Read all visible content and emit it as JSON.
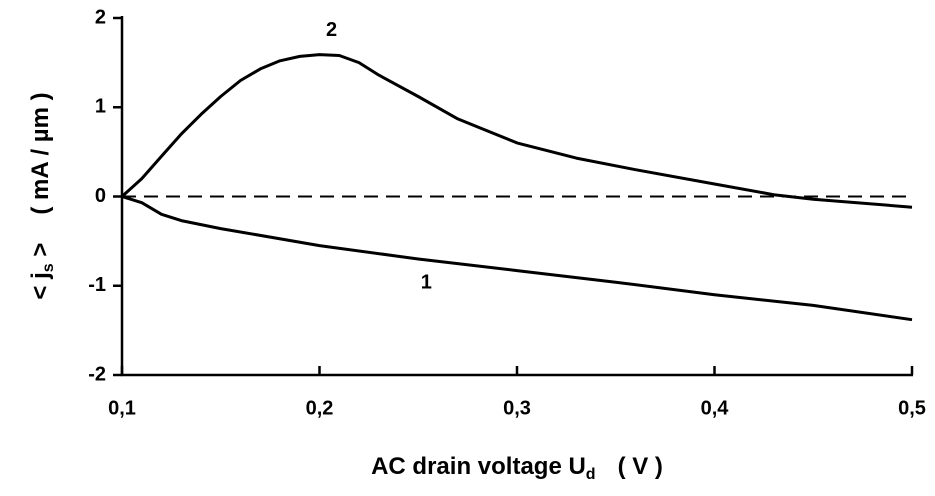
{
  "chart_data": {
    "type": "line",
    "x_label_parts": [
      "AC drain voltage U",
      "d",
      "( V )"
    ],
    "y_label_parts": [
      "< j",
      "s",
      " >",
      "( mA / µm )"
    ],
    "xlim": [
      0.1,
      0.5
    ],
    "xticks": [
      {
        "value": 0.1,
        "label": "0,1"
      },
      {
        "value": 0.2,
        "label": "0,2"
      },
      {
        "value": 0.3,
        "label": "0,3"
      },
      {
        "value": 0.4,
        "label": "0,4"
      },
      {
        "value": 0.5,
        "label": "0,5"
      }
    ],
    "ylim": [
      -2,
      2
    ],
    "yticks": [
      -2,
      -1,
      0,
      1,
      2
    ],
    "reference_line": 0,
    "series": [
      {
        "name": "1",
        "color": "#000000",
        "x": [
          0.1,
          0.11,
          0.12,
          0.13,
          0.15,
          0.2,
          0.25,
          0.3,
          0.35,
          0.4,
          0.45,
          0.5
        ],
        "values": [
          0,
          -0.07,
          -0.2,
          -0.27,
          -0.36,
          -0.55,
          -0.7,
          -0.83,
          -0.96,
          -1.1,
          -1.22,
          -1.38
        ]
      },
      {
        "name": "2",
        "color": "#000000",
        "x": [
          0.1,
          0.11,
          0.12,
          0.13,
          0.14,
          0.15,
          0.16,
          0.17,
          0.18,
          0.19,
          0.2,
          0.21,
          0.22,
          0.23,
          0.25,
          0.27,
          0.3,
          0.33,
          0.36,
          0.4,
          0.43,
          0.45,
          0.5
        ],
        "values": [
          0,
          0.2,
          0.45,
          0.7,
          0.92,
          1.12,
          1.3,
          1.43,
          1.52,
          1.57,
          1.59,
          1.58,
          1.5,
          1.36,
          1.12,
          0.87,
          0.6,
          0.43,
          0.3,
          0.14,
          0.02,
          -0.03,
          -0.12
        ]
      }
    ]
  }
}
